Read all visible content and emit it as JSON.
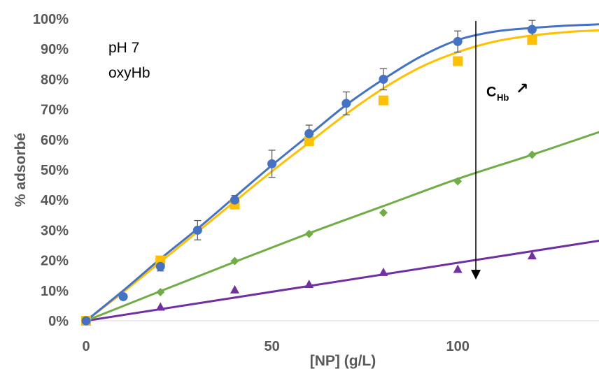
{
  "chart_data": {
    "type": "scatter",
    "xlabel": "[NP] (g/L)",
    "ylabel": "% adsorbé",
    "xlim": [
      0,
      138
    ],
    "ylim": [
      0,
      1
    ],
    "x_ticks": [
      0,
      50,
      100
    ],
    "x_tick_labels": [
      "0",
      "50",
      "100"
    ],
    "y_ticks": [
      0,
      0.1,
      0.2,
      0.3,
      0.4,
      0.5,
      0.6,
      0.7,
      0.8,
      0.9,
      1.0
    ],
    "y_tick_labels": [
      "0%",
      "10%",
      "20%",
      "30%",
      "40%",
      "50%",
      "60%",
      "70%",
      "80%",
      "90%",
      "100%"
    ],
    "grid": false,
    "annotations": {
      "line1": "pH 7",
      "line2": "oxyHb",
      "arrow_label": "C",
      "arrow_label_sub": "Hb",
      "arrow_glyph": "↗"
    },
    "series": [
      {
        "color": "#4472c4",
        "marker": "circle",
        "x": [
          0,
          10,
          20,
          30,
          40,
          50,
          60,
          70,
          80,
          100,
          120
        ],
        "y": [
          0.0,
          0.08,
          0.18,
          0.3,
          0.4,
          0.52,
          0.62,
          0.72,
          0.8,
          0.925,
          0.965
        ],
        "err": [
          0,
          0,
          0.015,
          0.032,
          0.015,
          0.045,
          0.028,
          0.038,
          0.035,
          0.035,
          0.03
        ],
        "fit": [
          [
            0,
            0
          ],
          [
            10,
            0.1
          ],
          [
            20,
            0.205
          ],
          [
            30,
            0.305
          ],
          [
            40,
            0.41
          ],
          [
            50,
            0.515
          ],
          [
            60,
            0.615
          ],
          [
            70,
            0.715
          ],
          [
            80,
            0.8
          ],
          [
            90,
            0.875
          ],
          [
            100,
            0.93
          ],
          [
            110,
            0.958
          ],
          [
            120,
            0.97
          ],
          [
            130,
            0.978
          ],
          [
            138,
            0.982
          ]
        ]
      },
      {
        "color": "#ffc000",
        "marker": "square",
        "x": [
          0,
          20,
          40,
          60,
          80,
          100,
          120
        ],
        "y": [
          0.0,
          0.2,
          0.385,
          0.595,
          0.73,
          0.86,
          0.93
        ],
        "fit": [
          [
            0,
            0
          ],
          [
            10,
            0.095
          ],
          [
            20,
            0.195
          ],
          [
            30,
            0.295
          ],
          [
            40,
            0.395
          ],
          [
            50,
            0.495
          ],
          [
            60,
            0.59
          ],
          [
            70,
            0.685
          ],
          [
            80,
            0.77
          ],
          [
            90,
            0.84
          ],
          [
            100,
            0.89
          ],
          [
            110,
            0.925
          ],
          [
            120,
            0.945
          ],
          [
            130,
            0.957
          ],
          [
            138,
            0.962
          ]
        ]
      },
      {
        "color": "#70ad47",
        "marker": "diamond",
        "x": [
          0,
          20,
          40,
          60,
          80,
          100,
          120
        ],
        "y": [
          0.0,
          0.095,
          0.198,
          0.288,
          0.358,
          0.462,
          0.55
        ],
        "fit": [
          [
            0,
            0
          ],
          [
            20,
            0.098
          ],
          [
            40,
            0.195
          ],
          [
            60,
            0.29
          ],
          [
            80,
            0.38
          ],
          [
            100,
            0.47
          ],
          [
            120,
            0.55
          ],
          [
            138,
            0.625
          ]
        ]
      },
      {
        "color": "#7030a0",
        "marker": "triangle",
        "x": [
          0,
          20,
          40,
          60,
          80,
          100,
          120
        ],
        "y": [
          0.0,
          0.045,
          0.102,
          0.12,
          0.16,
          0.17,
          0.215
        ],
        "fit": [
          [
            0,
            0
          ],
          [
            138,
            0.265
          ]
        ]
      }
    ]
  }
}
